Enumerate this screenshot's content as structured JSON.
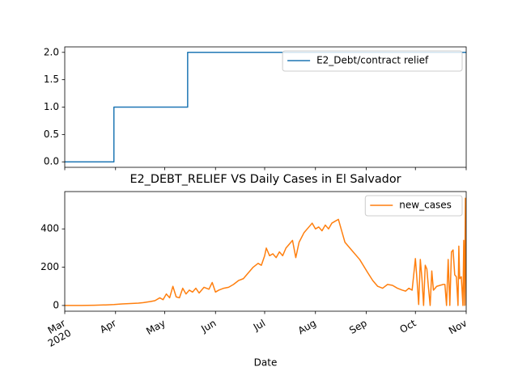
{
  "chart_data": [
    {
      "type": "line",
      "xlim": [
        0,
        245
      ],
      "ylim": [
        -0.1,
        2.1
      ],
      "yticks": [
        {
          "value": 0,
          "label": "0.0"
        },
        {
          "value": 0.5,
          "label": "0.5"
        },
        {
          "value": 1,
          "label": "1.0"
        },
        {
          "value": 1.5,
          "label": "1.5"
        },
        {
          "value": 2,
          "label": "2.0"
        }
      ],
      "legend": "upper right",
      "series": [
        {
          "name": "E2_Debt/contract relief",
          "color": "#1f77b4",
          "x": [
            0,
            30,
            30,
            75,
            75,
            245
          ],
          "values": [
            0,
            0,
            1,
            1,
            2,
            2
          ]
        }
      ]
    },
    {
      "type": "line",
      "title": "E2_DEBT_RELIEF VS Daily Cases in El Salvador",
      "xlabel": "Date",
      "x_year_label": "2020",
      "xlim": [
        0,
        245
      ],
      "ylim": [
        -30,
        595
      ],
      "xticks": [
        {
          "value": 0,
          "label": "Mar"
        },
        {
          "value": 31,
          "label": "Apr"
        },
        {
          "value": 61,
          "label": "May"
        },
        {
          "value": 92,
          "label": "Jun"
        },
        {
          "value": 122,
          "label": "Jul"
        },
        {
          "value": 153,
          "label": "Aug"
        },
        {
          "value": 184,
          "label": "Sep"
        },
        {
          "value": 214,
          "label": "Oct"
        },
        {
          "value": 245,
          "label": "Nov"
        }
      ],
      "yticks": [
        0,
        200,
        400
      ],
      "legend": "upper right",
      "series": [
        {
          "name": "new_cases",
          "color": "#ff7f0e",
          "x": [
            0,
            10,
            18,
            25,
            30,
            35,
            40,
            45,
            48,
            52,
            55,
            58,
            60,
            62,
            64,
            66,
            68,
            70,
            72,
            74,
            76,
            78,
            80,
            82,
            85,
            88,
            90,
            92,
            94,
            97,
            100,
            103,
            106,
            109,
            112,
            115,
            118,
            120,
            122,
            123,
            125,
            127,
            129,
            131,
            133,
            135,
            137,
            139,
            141,
            143,
            146,
            149,
            151,
            153,
            155,
            157,
            159,
            161,
            163,
            165,
            167,
            169,
            171,
            175,
            180,
            185,
            188,
            191,
            194,
            197,
            200,
            203,
            206,
            208,
            210,
            212,
            214,
            215,
            216,
            217,
            218,
            219,
            220,
            221,
            222,
            223,
            224,
            225,
            227,
            229,
            231,
            232,
            233,
            234,
            235,
            236,
            237,
            238,
            239,
            240,
            240.5,
            241,
            242,
            243,
            243.5,
            244,
            244.5,
            245
          ],
          "values": [
            0,
            0,
            1,
            3,
            5,
            8,
            10,
            12,
            15,
            20,
            25,
            40,
            30,
            60,
            40,
            100,
            45,
            40,
            90,
            60,
            80,
            70,
            90,
            65,
            95,
            85,
            120,
            70,
            80,
            90,
            95,
            110,
            130,
            140,
            170,
            200,
            220,
            210,
            260,
            300,
            260,
            270,
            250,
            280,
            260,
            300,
            320,
            340,
            250,
            330,
            380,
            410,
            430,
            400,
            410,
            390,
            420,
            400,
            430,
            440,
            450,
            390,
            330,
            290,
            240,
            170,
            130,
            100,
            90,
            110,
            105,
            90,
            80,
            75,
            90,
            80,
            245,
            130,
            5,
            240,
            140,
            0,
            210,
            190,
            90,
            0,
            180,
            80,
            100,
            105,
            110,
            110,
            0,
            240,
            0,
            280,
            290,
            160,
            150,
            0,
            310,
            140,
            150,
            0,
            340,
            0,
            560,
            0
          ]
        }
      ]
    }
  ]
}
